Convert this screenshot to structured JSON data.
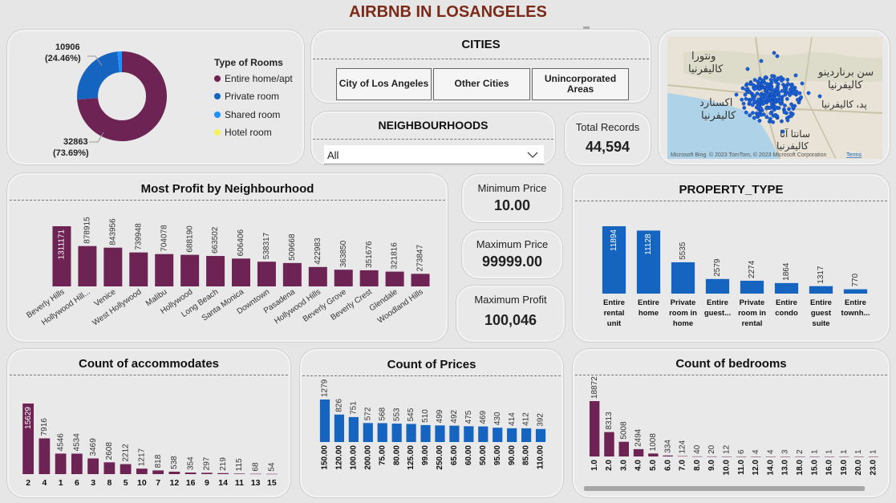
{
  "header": {
    "title": "AIRBNB IN LOSANGELES"
  },
  "room_types": {
    "legend_title": "Type of Rooms",
    "callout_top_value": "10906",
    "callout_top_pct": "(24.46%)",
    "callout_bottom_value": "32863",
    "callout_bottom_pct": "(73.69%)",
    "items": [
      {
        "label": "Entire home/apt",
        "color": "#6e2355"
      },
      {
        "label": "Private room",
        "color": "#1565c0"
      },
      {
        "label": "Shared room",
        "color": "#1e90ff"
      },
      {
        "label": "Hotel room",
        "color": "#f2f25a"
      }
    ]
  },
  "cities": {
    "title": "CITIES",
    "buttons": [
      "City of Los Angeles",
      "Other Cities",
      "Unincorporated Areas"
    ]
  },
  "neighbourhoods": {
    "title": "NEIGHBOURHOODS",
    "selected": "All"
  },
  "total_records": {
    "label": "Total Records",
    "value": "44,594"
  },
  "map": {
    "attribution": "© 2023 TomTom, © 2023 Microsoft Corporation",
    "terms": "Terms",
    "brand": "Microsoft Bing",
    "labels": [
      "ونتورا",
      "کالیفرنیا",
      "سن برناردینو",
      "کالیفرنیا",
      "اکسنارد",
      "کالیفرنیا",
      "پد، کالیفرنیا",
      "سانتا آنا",
      "کالیفرنیا"
    ]
  },
  "kpis": {
    "min_label": "Minimum Price",
    "min_value": "10.00",
    "max_label": "Maximum Price",
    "max_value": "99999.00",
    "profit_label": "Maximum Profit",
    "profit_value": "100,046"
  },
  "chart_data": [
    {
      "id": "neighbourhood",
      "type": "bar",
      "title": "Most Profit by Neighbourhood",
      "color": "#6e2355",
      "categories": [
        "Beverly Hills",
        "Hollywood Hill...",
        "Venice",
        "West Hollywood",
        "Malibu",
        "Hollywood",
        "Long Beach",
        "Santa Monica",
        "Downtown",
        "Pasadena",
        "Hollywood Hills",
        "Beverly Grove",
        "Beverly Crest",
        "Glendale",
        "Woodland Hills"
      ],
      "values": [
        1311171,
        878915,
        843956,
        739948,
        704078,
        688190,
        663502,
        606406,
        538317,
        509668,
        422983,
        363850,
        351676,
        321816,
        273847
      ]
    },
    {
      "id": "property",
      "type": "bar",
      "title": "PROPERTY_TYPE",
      "color": "#1565c0",
      "categories": [
        "Entire rental unit",
        "Entire home",
        "Private room in home",
        "Entire guest...",
        "Private room in rental ...",
        "Entire condo",
        "Entire guest suite",
        "Entire townh..."
      ],
      "values": [
        11894,
        11128,
        5535,
        2579,
        2274,
        1864,
        1317,
        770
      ]
    },
    {
      "id": "accommodates",
      "type": "bar",
      "title": "Count of accommodates",
      "color": "#6e2355",
      "categories": [
        "2",
        "4",
        "1",
        "6",
        "3",
        "8",
        "5",
        "10",
        "7",
        "12",
        "16",
        "9",
        "14",
        "11",
        "13",
        "15"
      ],
      "values": [
        15629,
        7916,
        4546,
        4534,
        3469,
        2608,
        2212,
        1217,
        818,
        538,
        354,
        297,
        219,
        115,
        68,
        54
      ]
    },
    {
      "id": "prices",
      "type": "bar",
      "title": "Count of Prices",
      "color": "#1565c0",
      "categories": [
        "150.00",
        "120.00",
        "100.00",
        "200.00",
        "75.00",
        "80.00",
        "125.00",
        "99.00",
        "250.00",
        "65.00",
        "60.00",
        "50.00",
        "95.00",
        "90.00",
        "85.00",
        "110.00"
      ],
      "values": [
        1279,
        826,
        751,
        572,
        568,
        553,
        545,
        510,
        499,
        492,
        475,
        469,
        430,
        414,
        412,
        392
      ]
    },
    {
      "id": "bedrooms",
      "type": "bar",
      "title": "Count of bedrooms",
      "color": "#6e2355",
      "categories": [
        "1.0",
        "2.0",
        "3.0",
        "4.0",
        "5.0",
        "6.0",
        "7.0",
        "8.0",
        "9.0",
        "10.0",
        "11.0",
        "12.0",
        "14.0",
        "13.0",
        "18.0",
        "15.0",
        "16.0",
        "19.0",
        "20.0",
        "23.0"
      ],
      "values": [
        18872,
        8313,
        5008,
        2494,
        1008,
        334,
        124,
        40,
        20,
        12,
        6,
        4,
        4,
        3,
        2,
        1,
        1,
        1,
        1,
        1
      ]
    }
  ]
}
